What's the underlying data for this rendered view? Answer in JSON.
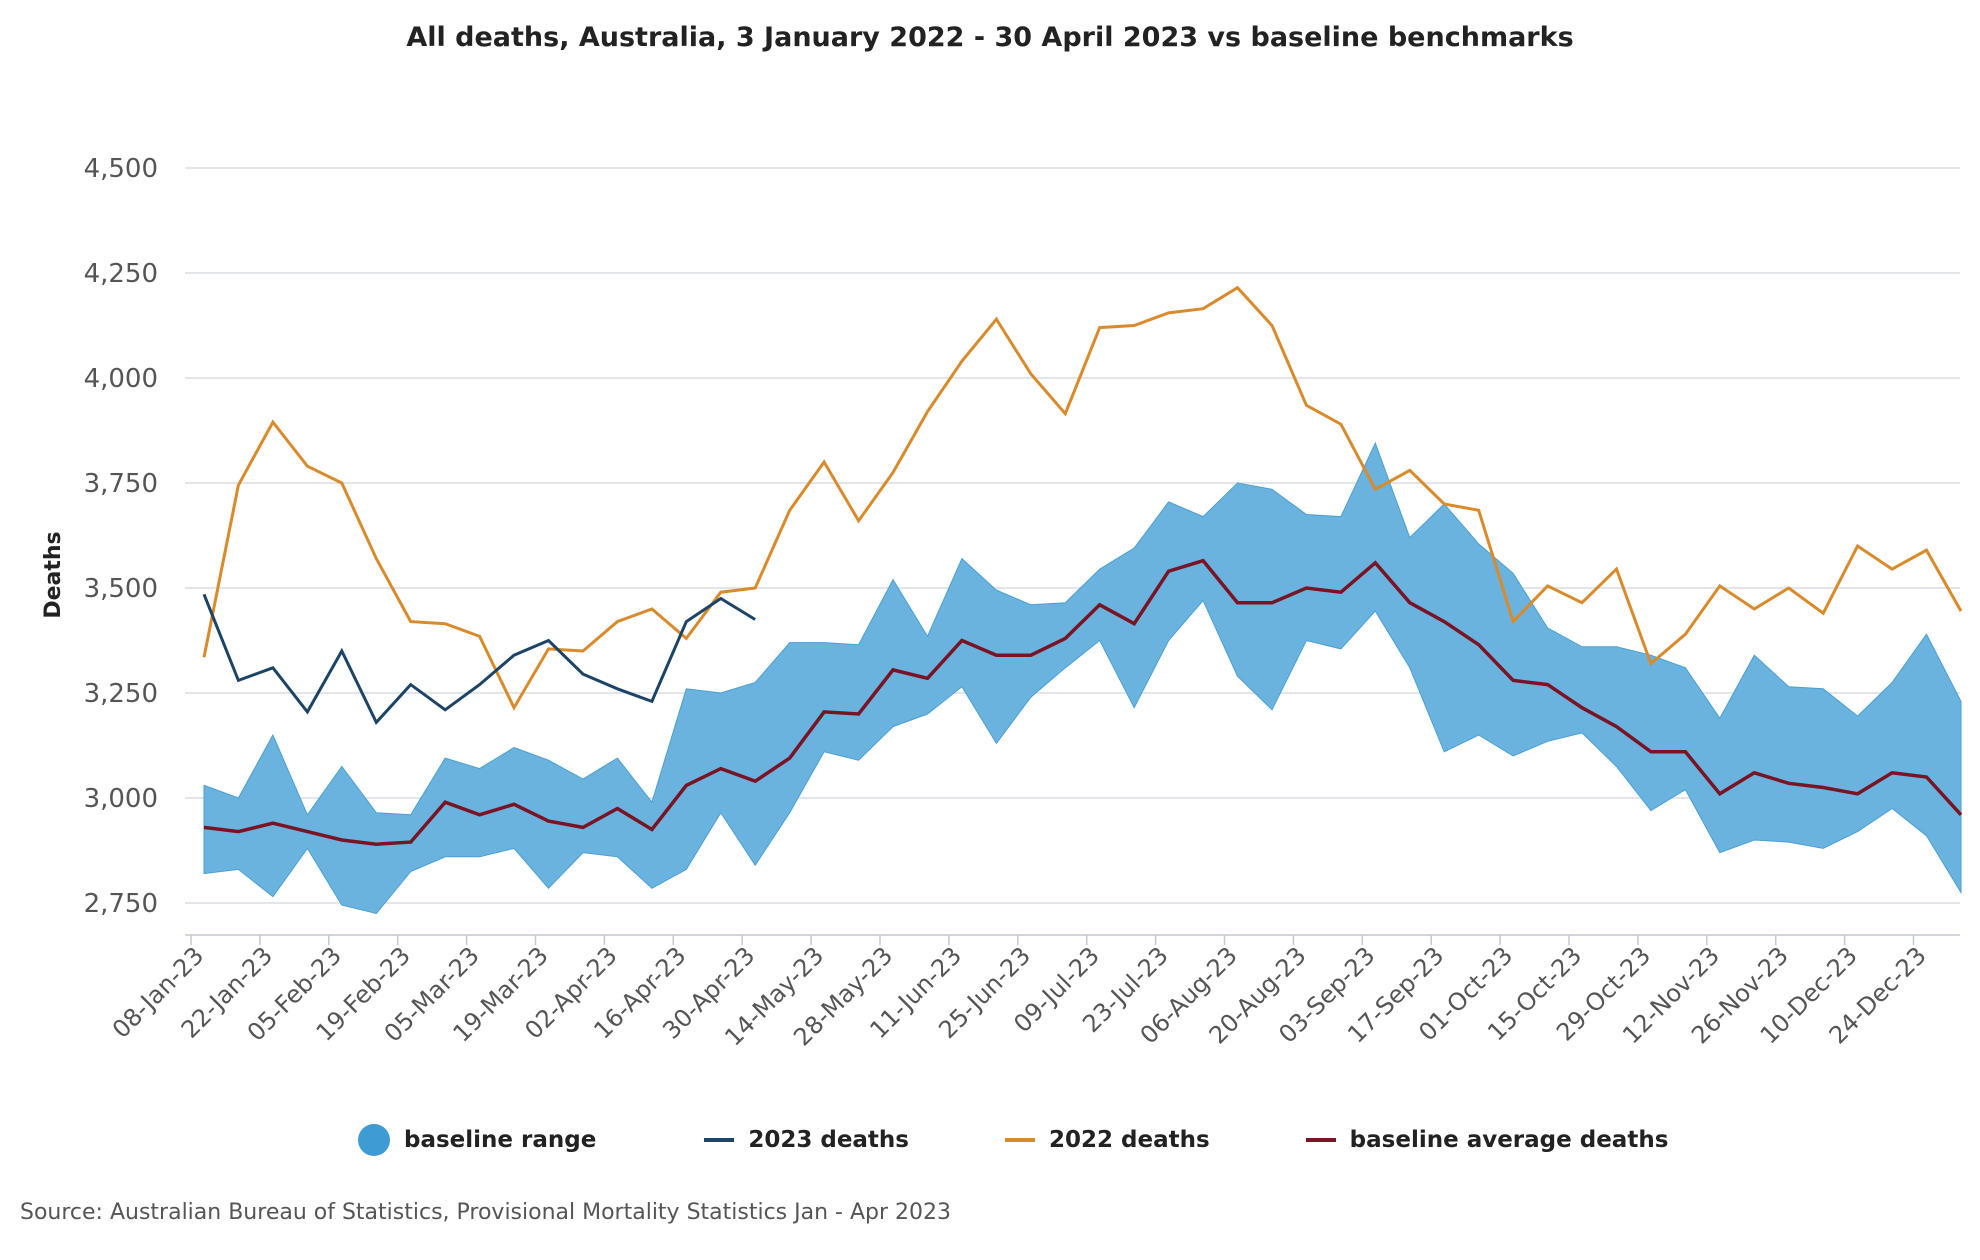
{
  "title": "All deaths, Australia, 3 January 2022 - 30 April 2023 vs baseline benchmarks",
  "source": "Source: Australian Bureau of Statistics, Provisional Mortality Statistics Jan - Apr 2023",
  "legend": {
    "baseline_range": "baseline range",
    "deaths_2023": "2023 deaths",
    "deaths_2022": "2022 deaths",
    "baseline_avg": "baseline average deaths"
  },
  "colors": {
    "range": "#6ab3df",
    "range_dot": "#3f9bd4",
    "deaths_2023": "#1c4466",
    "deaths_2022": "#d98a2b",
    "baseline_avg": "#7a1424",
    "grid": "#d9dde3"
  },
  "chart_data": {
    "type": "line",
    "title": "All deaths, Australia, 3 January 2022 - 30 April 2023 vs baseline benchmarks",
    "xlabel": "",
    "ylabel": "Deaths",
    "ylim": [
      2650,
      4550
    ],
    "yticks": [
      2750,
      3000,
      3250,
      3500,
      3750,
      4000,
      4250,
      4500
    ],
    "ytick_labels": [
      "2,750",
      "3,000",
      "3,250",
      "3,500",
      "3,750",
      "4,000",
      "4,250",
      "4,500"
    ],
    "grid": true,
    "legend_position": "bottom",
    "x_tick_labels": [
      "08-Jan-23",
      "22-Jan-23",
      "05-Feb-23",
      "19-Feb-23",
      "05-Mar-23",
      "19-Mar-23",
      "02-Apr-23",
      "16-Apr-23",
      "30-Apr-23",
      "14-May-23",
      "28-May-23",
      "11-Jun-23",
      "25-Jun-23",
      "09-Jul-23",
      "23-Jul-23",
      "06-Aug-23",
      "20-Aug-23",
      "03-Sep-23",
      "17-Sep-23",
      "01-Oct-23",
      "15-Oct-23",
      "29-Oct-23",
      "12-Nov-23",
      "26-Nov-23",
      "10-Dec-23",
      "24-Dec-23"
    ],
    "series": [
      {
        "name": "baseline range",
        "kind": "band",
        "upper": [
          3030,
          3000,
          3150,
          2960,
          3075,
          2965,
          2960,
          3095,
          3070,
          3120,
          3090,
          3045,
          3095,
          2990,
          3260,
          3250,
          3275,
          3370,
          3370,
          3365,
          3520,
          3385,
          3570,
          3495,
          3460,
          3465,
          3545,
          3595,
          3705,
          3670,
          3750,
          3735,
          3675,
          3670,
          3845,
          3620,
          3700,
          3605,
          3535,
          3405,
          3360,
          3360,
          3340,
          3310,
          3190,
          3340,
          3265,
          3260,
          3195,
          3275,
          3390,
          3230
        ],
        "lower": [
          2820,
          2830,
          2765,
          2880,
          2745,
          2725,
          2825,
          2860,
          2860,
          2880,
          2785,
          2870,
          2860,
          2785,
          2830,
          2965,
          2840,
          2965,
          3110,
          3090,
          3170,
          3200,
          3265,
          3130,
          3240,
          3310,
          3375,
          3215,
          3375,
          3470,
          3290,
          3210,
          3375,
          3355,
          3445,
          3310,
          3110,
          3150,
          3100,
          3135,
          3155,
          3075,
          2970,
          3020,
          2870,
          2900,
          2895,
          2880,
          2920,
          2975,
          2910,
          2775
        ]
      },
      {
        "name": "baseline average deaths",
        "values": [
          2930,
          2920,
          2940,
          2920,
          2900,
          2890,
          2895,
          2990,
          2960,
          2985,
          2945,
          2930,
          2975,
          2925,
          3030,
          3070,
          3040,
          3095,
          3205,
          3200,
          3305,
          3285,
          3375,
          3340,
          3340,
          3380,
          3460,
          3415,
          3540,
          3565,
          3465,
          3465,
          3500,
          3490,
          3560,
          3465,
          3420,
          3365,
          3280,
          3270,
          3215,
          3170,
          3110,
          3110,
          3010,
          3060,
          3035,
          3025,
          3010,
          3060,
          3050,
          2960
        ]
      },
      {
        "name": "2022 deaths",
        "values": [
          3335,
          3745,
          3895,
          3790,
          3750,
          3570,
          3420,
          3415,
          3385,
          3215,
          3355,
          3350,
          3420,
          3450,
          3380,
          3490,
          3500,
          3685,
          3800,
          3660,
          3775,
          3920,
          4040,
          4140,
          4010,
          3915,
          4120,
          4125,
          4155,
          4165,
          4215,
          4125,
          3935,
          3890,
          3735,
          3780,
          3700,
          3685,
          3420,
          3505,
          3465,
          3545,
          3320,
          3390,
          3505,
          3450,
          3500,
          3440,
          3600,
          3545,
          3590,
          3445
        ]
      },
      {
        "name": "2023 deaths",
        "values": [
          3485,
          3280,
          3310,
          3205,
          3350,
          3180,
          3270,
          3210,
          3270,
          3340,
          3375,
          3295,
          3260,
          3230,
          3420,
          3475,
          3425
        ]
      }
    ]
  }
}
